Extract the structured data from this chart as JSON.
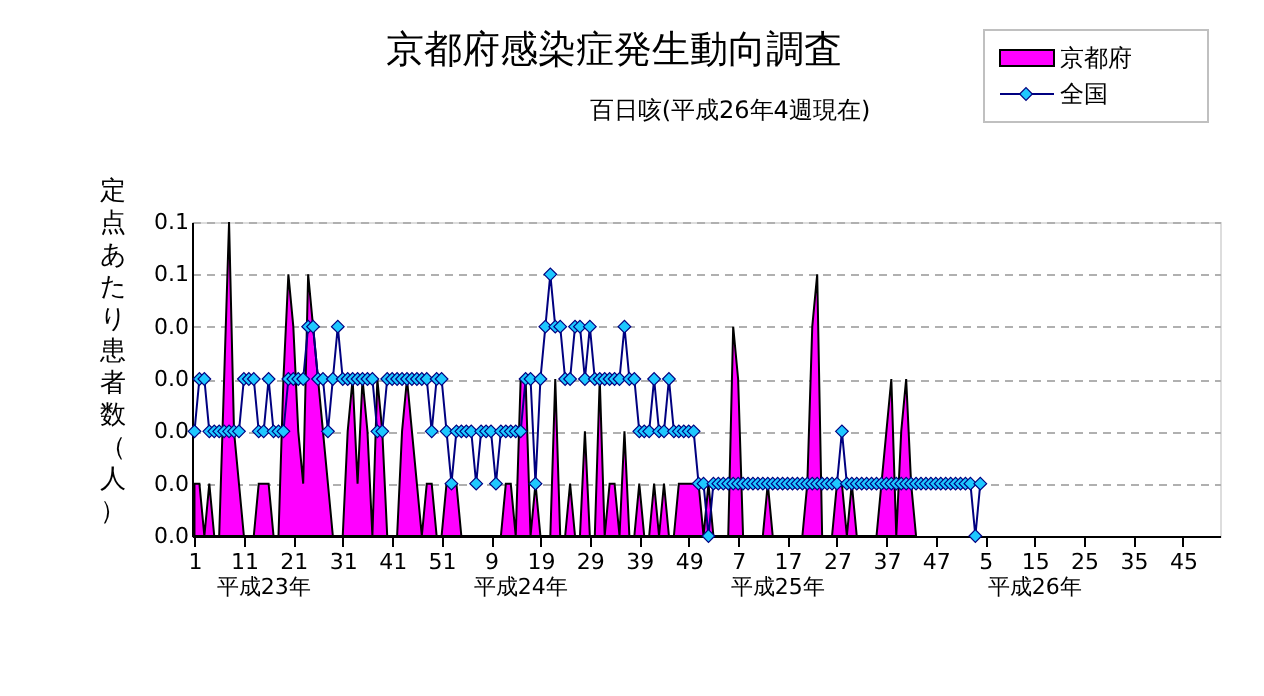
{
  "chart_data": {
    "type": "area",
    "title": "京都府感染症発生動向調査",
    "subtitle": "百日咳(平成26年4週現在)",
    "ylabel": "定点あたり患者数（人）",
    "categories": [
      "1",
      null,
      null,
      null,
      null,
      null,
      null,
      null,
      null,
      null,
      "11",
      null,
      null,
      null,
      null,
      null,
      null,
      null,
      null,
      null,
      "21",
      null,
      null,
      null,
      null,
      null,
      null,
      null,
      null,
      null,
      "31",
      null,
      null,
      null,
      null,
      null,
      null,
      null,
      null,
      null,
      "41",
      null,
      null,
      null,
      null,
      null,
      null,
      null,
      null,
      null,
      "51",
      null,
      null,
      null,
      null,
      null,
      null,
      null,
      null,
      null,
      "9",
      null,
      null,
      null,
      null,
      null,
      null,
      null,
      null,
      null,
      "19",
      null,
      null,
      null,
      null,
      null,
      null,
      null,
      null,
      null,
      "29",
      null,
      null,
      null,
      null,
      null,
      null,
      null,
      null,
      null,
      "39",
      null,
      null,
      null,
      null,
      null,
      null,
      null,
      null,
      null,
      "49",
      null,
      null,
      null,
      null,
      null,
      null,
      null,
      null,
      null,
      "7",
      null,
      null,
      null,
      null,
      null,
      null,
      null,
      null,
      null,
      "17",
      null,
      null,
      null,
      null,
      null,
      null,
      null,
      null,
      null,
      "27",
      null,
      null,
      null,
      null,
      null,
      null,
      null,
      null,
      null,
      "37",
      null,
      null,
      null,
      null,
      null,
      null,
      null,
      null,
      null,
      "47",
      null,
      null,
      null,
      null,
      null,
      null,
      null,
      null,
      null,
      "5",
      null,
      null,
      null,
      null,
      null,
      null,
      null,
      null,
      null,
      "15",
      null,
      null,
      null,
      null,
      null,
      null,
      null,
      null,
      null,
      "25",
      null,
      null,
      null,
      null,
      null,
      null,
      null,
      null,
      null,
      "35",
      null,
      null,
      null,
      null,
      null,
      null,
      null,
      null,
      null,
      "45",
      null,
      null,
      null,
      null,
      null,
      null,
      null
    ],
    "series": [
      {
        "name": "京都府",
        "color": "#ff00ff",
        "values": [
          0.01,
          0.01,
          0,
          0.01,
          0,
          0,
          0.03,
          0.06,
          0.02,
          0.01,
          0,
          0,
          0,
          0.01,
          0.01,
          0.01,
          0,
          0,
          0.03,
          0.05,
          0.04,
          0.02,
          0.01,
          0.05,
          0.04,
          0.03,
          0.02,
          0.01,
          0,
          0,
          0,
          0.02,
          0.03,
          0.01,
          0.03,
          0.02,
          0,
          0.03,
          0.02,
          0,
          0,
          0,
          0.02,
          0.03,
          0.02,
          0.01,
          0,
          0.01,
          0.01,
          0,
          0,
          0.01,
          0.01,
          0.01,
          0,
          0,
          0,
          0,
          0,
          0,
          0,
          0,
          0,
          0.01,
          0.01,
          0,
          0.03,
          0.03,
          0,
          0.01,
          0,
          0,
          0,
          0.03,
          0,
          0,
          0.01,
          0,
          0,
          0.02,
          0,
          0,
          0.03,
          0,
          0.01,
          0.01,
          0,
          0.02,
          0,
          0,
          0.01,
          0,
          0,
          0.01,
          0,
          0.01,
          0,
          0,
          0.01,
          0.01,
          0.01,
          0.01,
          0.01,
          0,
          0.01,
          0,
          0,
          0,
          0,
          0.04,
          0.03,
          0,
          0,
          0,
          0,
          0,
          0.01,
          0,
          0,
          0,
          0,
          0,
          0,
          0,
          0.01,
          0.04,
          0.05,
          0,
          0,
          0,
          0.01,
          0.01,
          0,
          0.01,
          0,
          0,
          0,
          0,
          0,
          0.01,
          0.02,
          0.03,
          0,
          0.02,
          0.03,
          0.01,
          0,
          null,
          null,
          null,
          null,
          null,
          null,
          null,
          null,
          null,
          null,
          null,
          null,
          null,
          null,
          null,
          null,
          null,
          null,
          null,
          null,
          null,
          null,
          null,
          null,
          null,
          null,
          null,
          null,
          null,
          null,
          null,
          null,
          null,
          null,
          null,
          null,
          null,
          null,
          null,
          null,
          null,
          null,
          null,
          null,
          null,
          null,
          null,
          null,
          null,
          null,
          null,
          null,
          null,
          null,
          null,
          null,
          null,
          null,
          null,
          null,
          null
        ]
      },
      {
        "name": "全国",
        "type": "line",
        "color": "#000080",
        "marker": "diamond",
        "values": [
          0.02,
          0.03,
          0.03,
          0.02,
          0.02,
          0.02,
          0.02,
          0.02,
          0.02,
          0.02,
          0.03,
          0.03,
          0.03,
          0.02,
          0.02,
          0.03,
          0.02,
          0.02,
          0.02,
          0.03,
          0.03,
          0.03,
          0.03,
          0.04,
          0.04,
          0.03,
          0.03,
          0.02,
          0.03,
          0.04,
          0.03,
          0.03,
          0.03,
          0.03,
          0.03,
          0.03,
          0.03,
          0.02,
          0.02,
          0.03,
          0.03,
          0.03,
          0.03,
          0.03,
          0.03,
          0.03,
          0.03,
          0.03,
          0.02,
          0.03,
          0.03,
          0.02,
          0.01,
          0.02,
          0.02,
          0.02,
          0.02,
          0.01,
          0.02,
          0.02,
          0.02,
          0.01,
          0.02,
          0.02,
          0.02,
          0.02,
          0.02,
          0.03,
          0.03,
          0.01,
          0.03,
          0.04,
          0.05,
          0.04,
          0.04,
          0.03,
          0.03,
          0.04,
          0.04,
          0.03,
          0.04,
          0.03,
          0.03,
          0.03,
          0.03,
          0.03,
          0.03,
          0.04,
          0.03,
          0.03,
          0.02,
          0.02,
          0.02,
          0.03,
          0.02,
          0.02,
          0.03,
          0.02,
          0.02,
          0.02,
          0.02,
          0.02,
          0.01,
          0.01,
          0,
          0.01,
          0.01,
          0.01,
          0.01,
          0.01,
          0.01,
          0.01,
          0.01,
          0.01,
          0.01,
          0.01,
          0.01,
          0.01,
          0.01,
          0.01,
          0.01,
          0.01,
          0.01,
          0.01,
          0.01,
          0.01,
          0.01,
          0.01,
          0.01,
          0.01,
          0.01,
          0.02,
          0.01,
          0.01,
          0.01,
          0.01,
          0.01,
          0.01,
          0.01,
          0.01,
          0.01,
          0.01,
          0.01,
          0.01,
          0.01,
          0.01,
          0.01,
          0.01,
          0.01,
          0.01,
          0.01,
          0.01,
          0.01,
          0.01,
          0.01,
          0.01,
          0.01,
          0.01,
          0,
          0.01,
          null,
          null,
          null,
          null,
          null,
          null,
          null,
          null,
          null,
          null,
          null,
          null,
          null,
          null,
          null,
          null,
          null,
          null,
          null,
          null,
          null,
          null,
          null,
          null,
          null,
          null,
          null,
          null,
          null,
          null,
          null,
          null,
          null,
          null,
          null,
          null,
          null,
          null,
          null,
          null,
          null,
          null,
          null,
          null,
          null,
          null,
          null,
          null
        ]
      }
    ],
    "ylim": [
      0,
      0.06
    ],
    "yticks": [
      {
        "value": 0,
        "label": "0.0"
      },
      {
        "value": 0.01,
        "label": "0.0"
      },
      {
        "value": 0.02,
        "label": "0.0"
      },
      {
        "value": 0.03,
        "label": "0.0"
      },
      {
        "value": 0.04,
        "label": "0.0"
      },
      {
        "value": 0.05,
        "label": "0.1"
      },
      {
        "value": 0.06,
        "label": "0.1"
      }
    ],
    "grid": "y",
    "legend": "top right",
    "annotations": [
      "平成23年",
      "平成24年",
      "平成25年",
      "平成26年"
    ]
  }
}
